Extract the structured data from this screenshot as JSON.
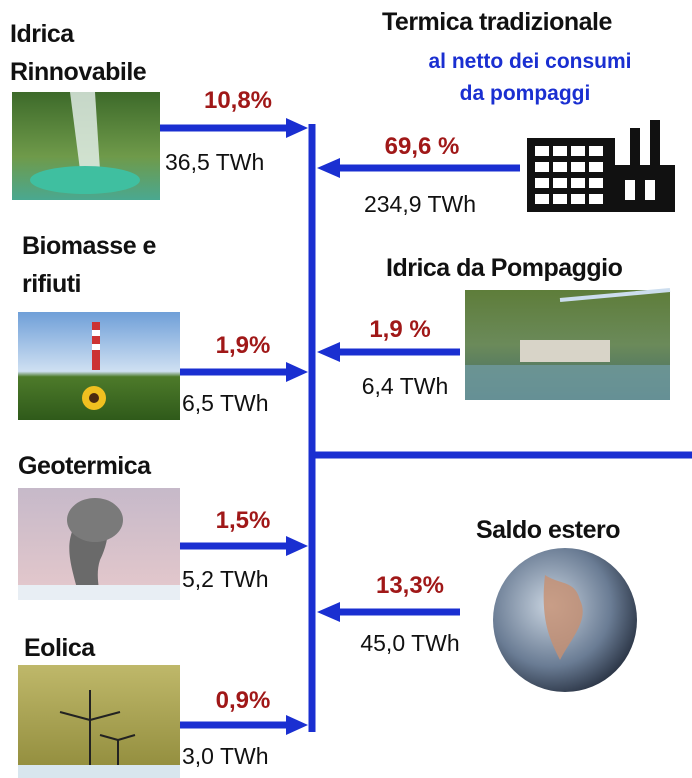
{
  "nodes": [
    {
      "title": [
        "Idrica",
        "Rinnovabile"
      ],
      "percent": "10,8%",
      "energy": "36,5 TWh"
    },
    {
      "title": [
        "Termica tradizionale"
      ],
      "subtitle": [
        "al netto dei consumi",
        "da pompaggi"
      ],
      "percent": "69,6 %",
      "energy": "234,9 TWh"
    },
    {
      "title": [
        "Biomasse e",
        "rifiuti"
      ],
      "percent": "1,9%",
      "energy": "6,5 TWh"
    },
    {
      "title": [
        "Idrica da Pompaggio"
      ],
      "percent": "1,9 %",
      "energy": "6,4 TWh"
    },
    {
      "title": [
        "Geotermica"
      ],
      "percent": "1,5%",
      "energy": "5,2 TWh"
    },
    {
      "title": [
        "Saldo estero"
      ],
      "percent": "13,3%",
      "energy": "45,0 TWh"
    },
    {
      "title": [
        "Eolica"
      ],
      "percent": "0,9%",
      "energy": "3,0 TWh"
    }
  ]
}
